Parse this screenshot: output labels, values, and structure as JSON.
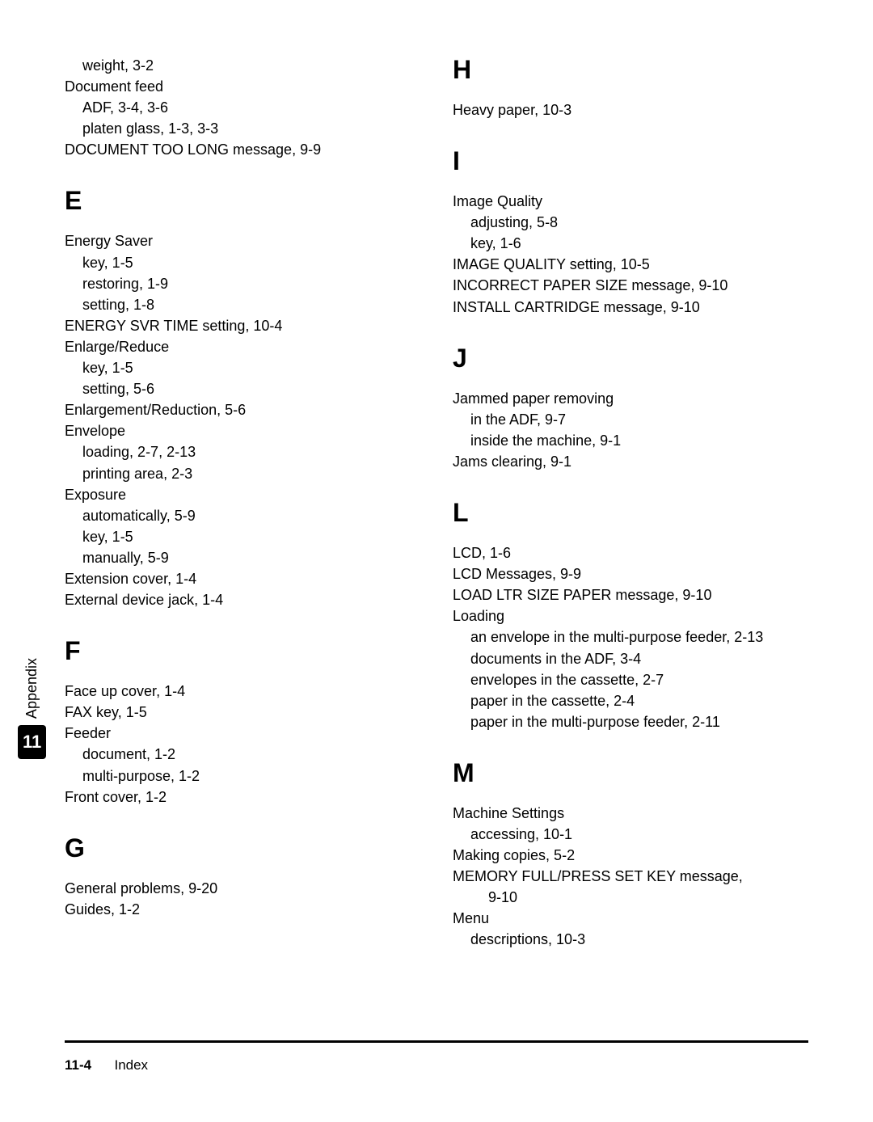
{
  "sideTab": {
    "label": "Appendix",
    "number": "11"
  },
  "footer": {
    "page": "11-4",
    "title": "Index"
  },
  "left": {
    "pre": [
      {
        "text": "weight, 3-2",
        "indent": 1
      },
      {
        "text": "Document feed",
        "indent": 0
      },
      {
        "text": "ADF, 3-4, 3-6",
        "indent": 1
      },
      {
        "text": "platen glass, 1-3, 3-3",
        "indent": 1
      },
      {
        "text": "DOCUMENT TOO LONG message, 9-9",
        "indent": 0
      }
    ],
    "sections": [
      {
        "letter": "E",
        "lines": [
          {
            "text": "Energy Saver",
            "indent": 0
          },
          {
            "text": "key, 1-5",
            "indent": 1
          },
          {
            "text": "restoring, 1-9",
            "indent": 1
          },
          {
            "text": "setting, 1-8",
            "indent": 1
          },
          {
            "text": "ENERGY SVR TIME setting, 10-4",
            "indent": 0
          },
          {
            "text": "Enlarge/Reduce",
            "indent": 0
          },
          {
            "text": "key, 1-5",
            "indent": 1
          },
          {
            "text": "setting, 5-6",
            "indent": 1
          },
          {
            "text": "Enlargement/Reduction, 5-6",
            "indent": 0
          },
          {
            "text": "Envelope",
            "indent": 0
          },
          {
            "text": "loading, 2-7, 2-13",
            "indent": 1
          },
          {
            "text": "printing area, 2-3",
            "indent": 1
          },
          {
            "text": "Exposure",
            "indent": 0
          },
          {
            "text": "automatically, 5-9",
            "indent": 1
          },
          {
            "text": "key, 1-5",
            "indent": 1
          },
          {
            "text": "manually, 5-9",
            "indent": 1
          },
          {
            "text": "Extension cover, 1-4",
            "indent": 0
          },
          {
            "text": "External device jack, 1-4",
            "indent": 0
          }
        ]
      },
      {
        "letter": "F",
        "lines": [
          {
            "text": "Face up cover, 1-4",
            "indent": 0
          },
          {
            "text": "FAX key, 1-5",
            "indent": 0
          },
          {
            "text": "Feeder",
            "indent": 0
          },
          {
            "text": "document, 1-2",
            "indent": 1
          },
          {
            "text": "multi-purpose, 1-2",
            "indent": 1
          },
          {
            "text": "Front cover, 1-2",
            "indent": 0
          }
        ]
      },
      {
        "letter": "G",
        "lines": [
          {
            "text": "General problems, 9-20",
            "indent": 0
          },
          {
            "text": "Guides, 1-2",
            "indent": 0
          }
        ]
      }
    ]
  },
  "right": {
    "sections": [
      {
        "letter": "H",
        "lines": [
          {
            "text": "Heavy paper, 10-3",
            "indent": 0
          }
        ]
      },
      {
        "letter": "I",
        "lines": [
          {
            "text": "Image Quality",
            "indent": 0
          },
          {
            "text": "adjusting, 5-8",
            "indent": 1
          },
          {
            "text": "key, 1-6",
            "indent": 1
          },
          {
            "text": "IMAGE QUALITY setting, 10-5",
            "indent": 0
          },
          {
            "text": "INCORRECT PAPER SIZE message, 9-10",
            "indent": 0
          },
          {
            "text": "INSTALL CARTRIDGE message, 9-10",
            "indent": 0
          }
        ]
      },
      {
        "letter": "J",
        "lines": [
          {
            "text": "Jammed paper removing",
            "indent": 0
          },
          {
            "text": "in the ADF, 9-7",
            "indent": 1
          },
          {
            "text": "inside the machine, 9-1",
            "indent": 1
          },
          {
            "text": "Jams clearing, 9-1",
            "indent": 0
          }
        ]
      },
      {
        "letter": "L",
        "lines": [
          {
            "text": "LCD, 1-6",
            "indent": 0
          },
          {
            "text": "LCD Messages, 9-9",
            "indent": 0
          },
          {
            "text": "LOAD LTR SIZE PAPER message, 9-10",
            "indent": 0
          },
          {
            "text": "Loading",
            "indent": 0
          },
          {
            "text": "an envelope in the multi-purpose feeder, 2-13",
            "indent": 1
          },
          {
            "text": "documents in the ADF, 3-4",
            "indent": 1
          },
          {
            "text": "envelopes in the cassette, 2-7",
            "indent": 1
          },
          {
            "text": "paper in the cassette, 2-4",
            "indent": 1
          },
          {
            "text": "paper in the multi-purpose feeder, 2-11",
            "indent": 1
          }
        ]
      },
      {
        "letter": "M",
        "lines": [
          {
            "text": "Machine Settings",
            "indent": 0
          },
          {
            "text": "accessing, 10-1",
            "indent": 1
          },
          {
            "text": "Making copies, 5-2",
            "indent": 0
          },
          {
            "text": "MEMORY FULL/PRESS SET KEY message,",
            "indent": 0
          },
          {
            "text": "9-10",
            "indent": 2
          },
          {
            "text": "Menu",
            "indent": 0
          },
          {
            "text": "descriptions, 10-3",
            "indent": 1
          }
        ]
      }
    ]
  }
}
